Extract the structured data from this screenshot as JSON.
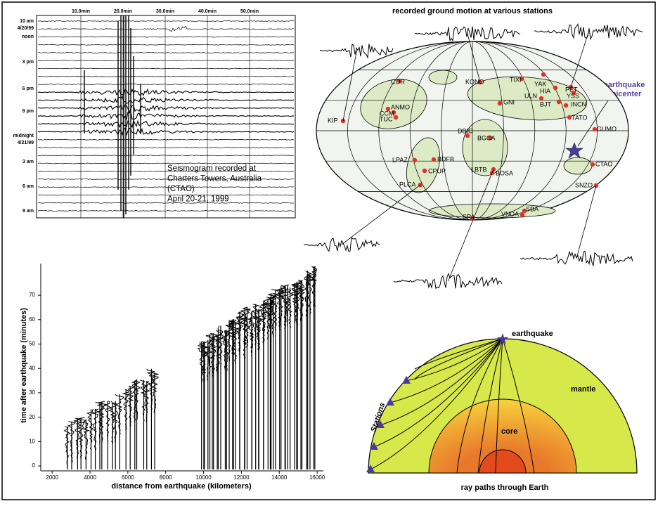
{
  "seismogram": {
    "minute_ticks": [
      "10.0min",
      "20.0min",
      "30.0min",
      "40.0min",
      "50.0min"
    ],
    "time_labels": [
      "10 am",
      "4/20/99",
      "noon",
      "3 pm",
      "6 pm",
      "9 pm",
      "midnight",
      "4/21/99",
      "3 am",
      "6 am",
      "9 am"
    ],
    "caption": [
      "Seismogram recorded at",
      "Charters Towers, Australia",
      "(CTAO)",
      "April 20-21, 1999"
    ]
  },
  "map": {
    "title": "recorded ground motion at various stations",
    "epicenter_label": [
      "earthquake",
      "epicenter"
    ],
    "stations": [
      "COR",
      "KONO",
      "TIXI",
      "YAK",
      "HIA",
      "PET",
      "YSS",
      "ULN",
      "INCN",
      "BJT",
      "ANMO",
      "CCM",
      "TUC",
      "KIP",
      "GNI",
      "DBIC",
      "BGCA",
      "TATO",
      "GUMO",
      "LPAZ",
      "BDFB",
      "CPUP",
      "LBTB",
      "BOSA",
      "CTAO",
      "PLCA",
      "SNZO",
      "SPA",
      "VNDA",
      "SBA"
    ]
  },
  "record_section": {
    "y_axis_label": "time after earthquake (minutes)",
    "x_axis_label": "distance from earthquake (kilometers)",
    "xlim": [
      1400,
      16330
    ],
    "xticks": [
      2000,
      4000,
      6000,
      8000,
      10000,
      12000,
      14000,
      16000
    ],
    "ylim": [
      -2,
      83
    ],
    "yticks": [
      0,
      10,
      20,
      30,
      40,
      50,
      60,
      70
    ]
  },
  "ray_paths": {
    "epicenter_label": "earthquake",
    "mantle_label": "mantle",
    "core_label": "core",
    "stations_label": "Stations",
    "caption": "ray paths through Earth"
  }
}
